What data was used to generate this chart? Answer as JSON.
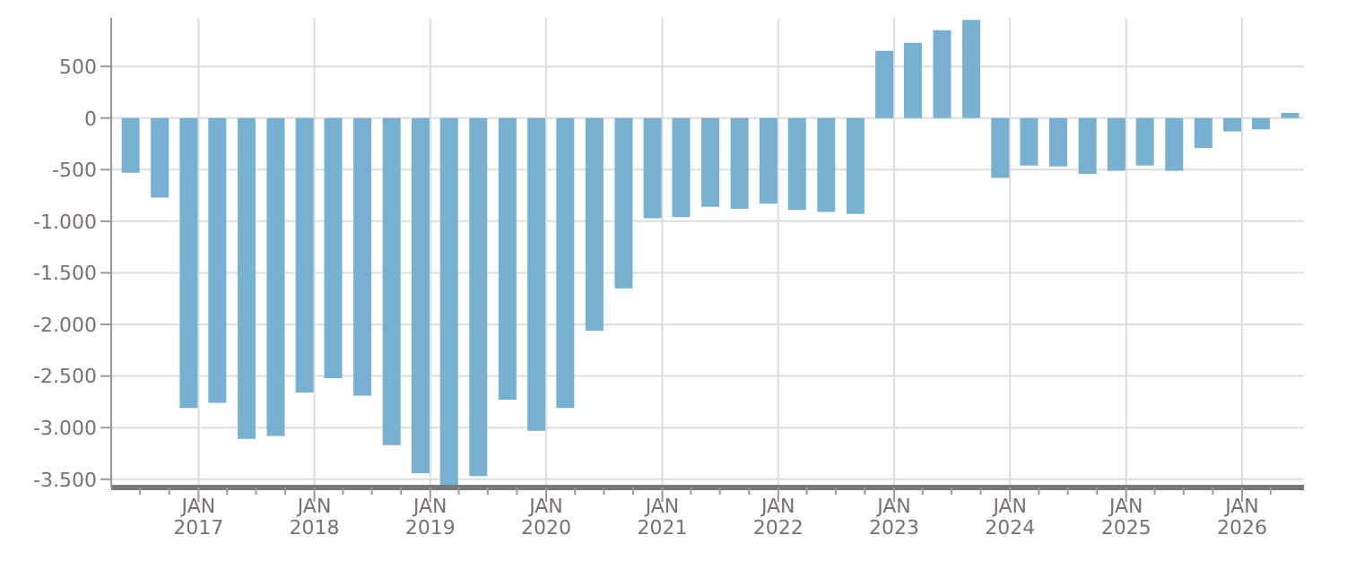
{
  "chart_data": {
    "type": "bar",
    "color": "#77b0d1",
    "x": [
      "2016-06",
      "2016-09",
      "2016-12",
      "2017-03",
      "2017-06",
      "2017-09",
      "2017-12",
      "2018-03",
      "2018-06",
      "2018-09",
      "2018-12",
      "2019-03",
      "2019-06",
      "2019-09",
      "2019-12",
      "2020-03",
      "2020-06",
      "2020-09",
      "2020-12",
      "2021-03",
      "2021-06",
      "2021-09",
      "2021-12",
      "2022-03",
      "2022-06",
      "2022-09",
      "2022-12",
      "2023-03",
      "2023-06",
      "2023-09",
      "2023-12",
      "2024-03",
      "2024-06",
      "2024-09",
      "2024-12",
      "2025-03",
      "2025-06",
      "2025-09",
      "2025-12",
      "2026-03",
      "2026-06"
    ],
    "values": [
      -530,
      -770,
      -2810,
      -2760,
      -3110,
      -3080,
      -2660,
      -2520,
      -2690,
      -3170,
      -3440,
      -3560,
      -3470,
      -2730,
      -3030,
      -2810,
      -2060,
      -1650,
      -970,
      -960,
      -860,
      -880,
      -830,
      -890,
      -910,
      -930,
      650,
      730,
      850,
      950,
      -580,
      -460,
      -470,
      -540,
      -510,
      -460,
      -510,
      -290,
      -130,
      -110,
      50
    ],
    "ylim": [
      -3580,
      970
    ],
    "yticks": [
      {
        "value": -3500,
        "label": "-3.500"
      },
      {
        "value": -3000,
        "label": "-3.000"
      },
      {
        "value": -2500,
        "label": "-2.500"
      },
      {
        "value": -2000,
        "label": "-2.000"
      },
      {
        "value": -1500,
        "label": "-1.500"
      },
      {
        "value": -1000,
        "label": "-1.000"
      },
      {
        "value": -500,
        "label": "-500"
      },
      0,
      500
    ],
    "xlim": [
      "2016-04",
      "2026-07-15"
    ],
    "xticks": [
      {
        "value": "2016-07",
        "label": null
      },
      {
        "value": "2016-10",
        "label": null
      },
      {
        "value": "2017-01",
        "label": "JAN 2017"
      },
      {
        "value": "2017-04",
        "label": null
      },
      {
        "value": "2017-07",
        "label": null
      },
      {
        "value": "2017-10",
        "label": null
      },
      {
        "value": "2018-01",
        "label": "JAN 2018"
      },
      {
        "value": "2018-04",
        "label": null
      },
      {
        "value": "2018-07",
        "label": null
      },
      {
        "value": "2018-10",
        "label": null
      },
      {
        "value": "2019-01",
        "label": "JAN 2019"
      },
      {
        "value": "2019-04",
        "label": null
      },
      {
        "value": "2019-07",
        "label": null
      },
      {
        "value": "2019-10",
        "label": null
      },
      {
        "value": "2020-01",
        "label": "JAN 2020"
      },
      {
        "value": "2020-04",
        "label": null
      },
      {
        "value": "2020-07",
        "label": null
      },
      {
        "value": "2020-10",
        "label": null
      },
      {
        "value": "2021-01",
        "label": "JAN 2021"
      },
      {
        "value": "2021-04",
        "label": null
      },
      {
        "value": "2021-07",
        "label": null
      },
      {
        "value": "2021-10",
        "label": null
      },
      {
        "value": "2022-01",
        "label": "JAN 2022"
      },
      {
        "value": "2022-04",
        "label": null
      },
      {
        "value": "2022-07",
        "label": null
      },
      {
        "value": "2022-10",
        "label": null
      },
      {
        "value": "2023-01",
        "label": "JAN 2023"
      },
      {
        "value": "2023-04",
        "label": null
      },
      {
        "value": "2023-07",
        "label": null
      },
      {
        "value": "2023-10",
        "label": null
      },
      {
        "value": "2024-01",
        "label": "JAN 2024"
      },
      {
        "value": "2024-04",
        "label": null
      },
      {
        "value": "2024-07",
        "label": null
      },
      {
        "value": "2024-10",
        "label": null
      },
      {
        "value": "2025-01",
        "label": "JAN 2025"
      },
      {
        "value": "2025-04",
        "label": null
      },
      {
        "value": "2025-07",
        "label": null
      },
      {
        "value": "2025-10",
        "label": null
      },
      {
        "value": "2026-01",
        "label": "JAN 2026"
      },
      {
        "value": "2026-04",
        "label": null
      }
    ],
    "grid": true
  }
}
